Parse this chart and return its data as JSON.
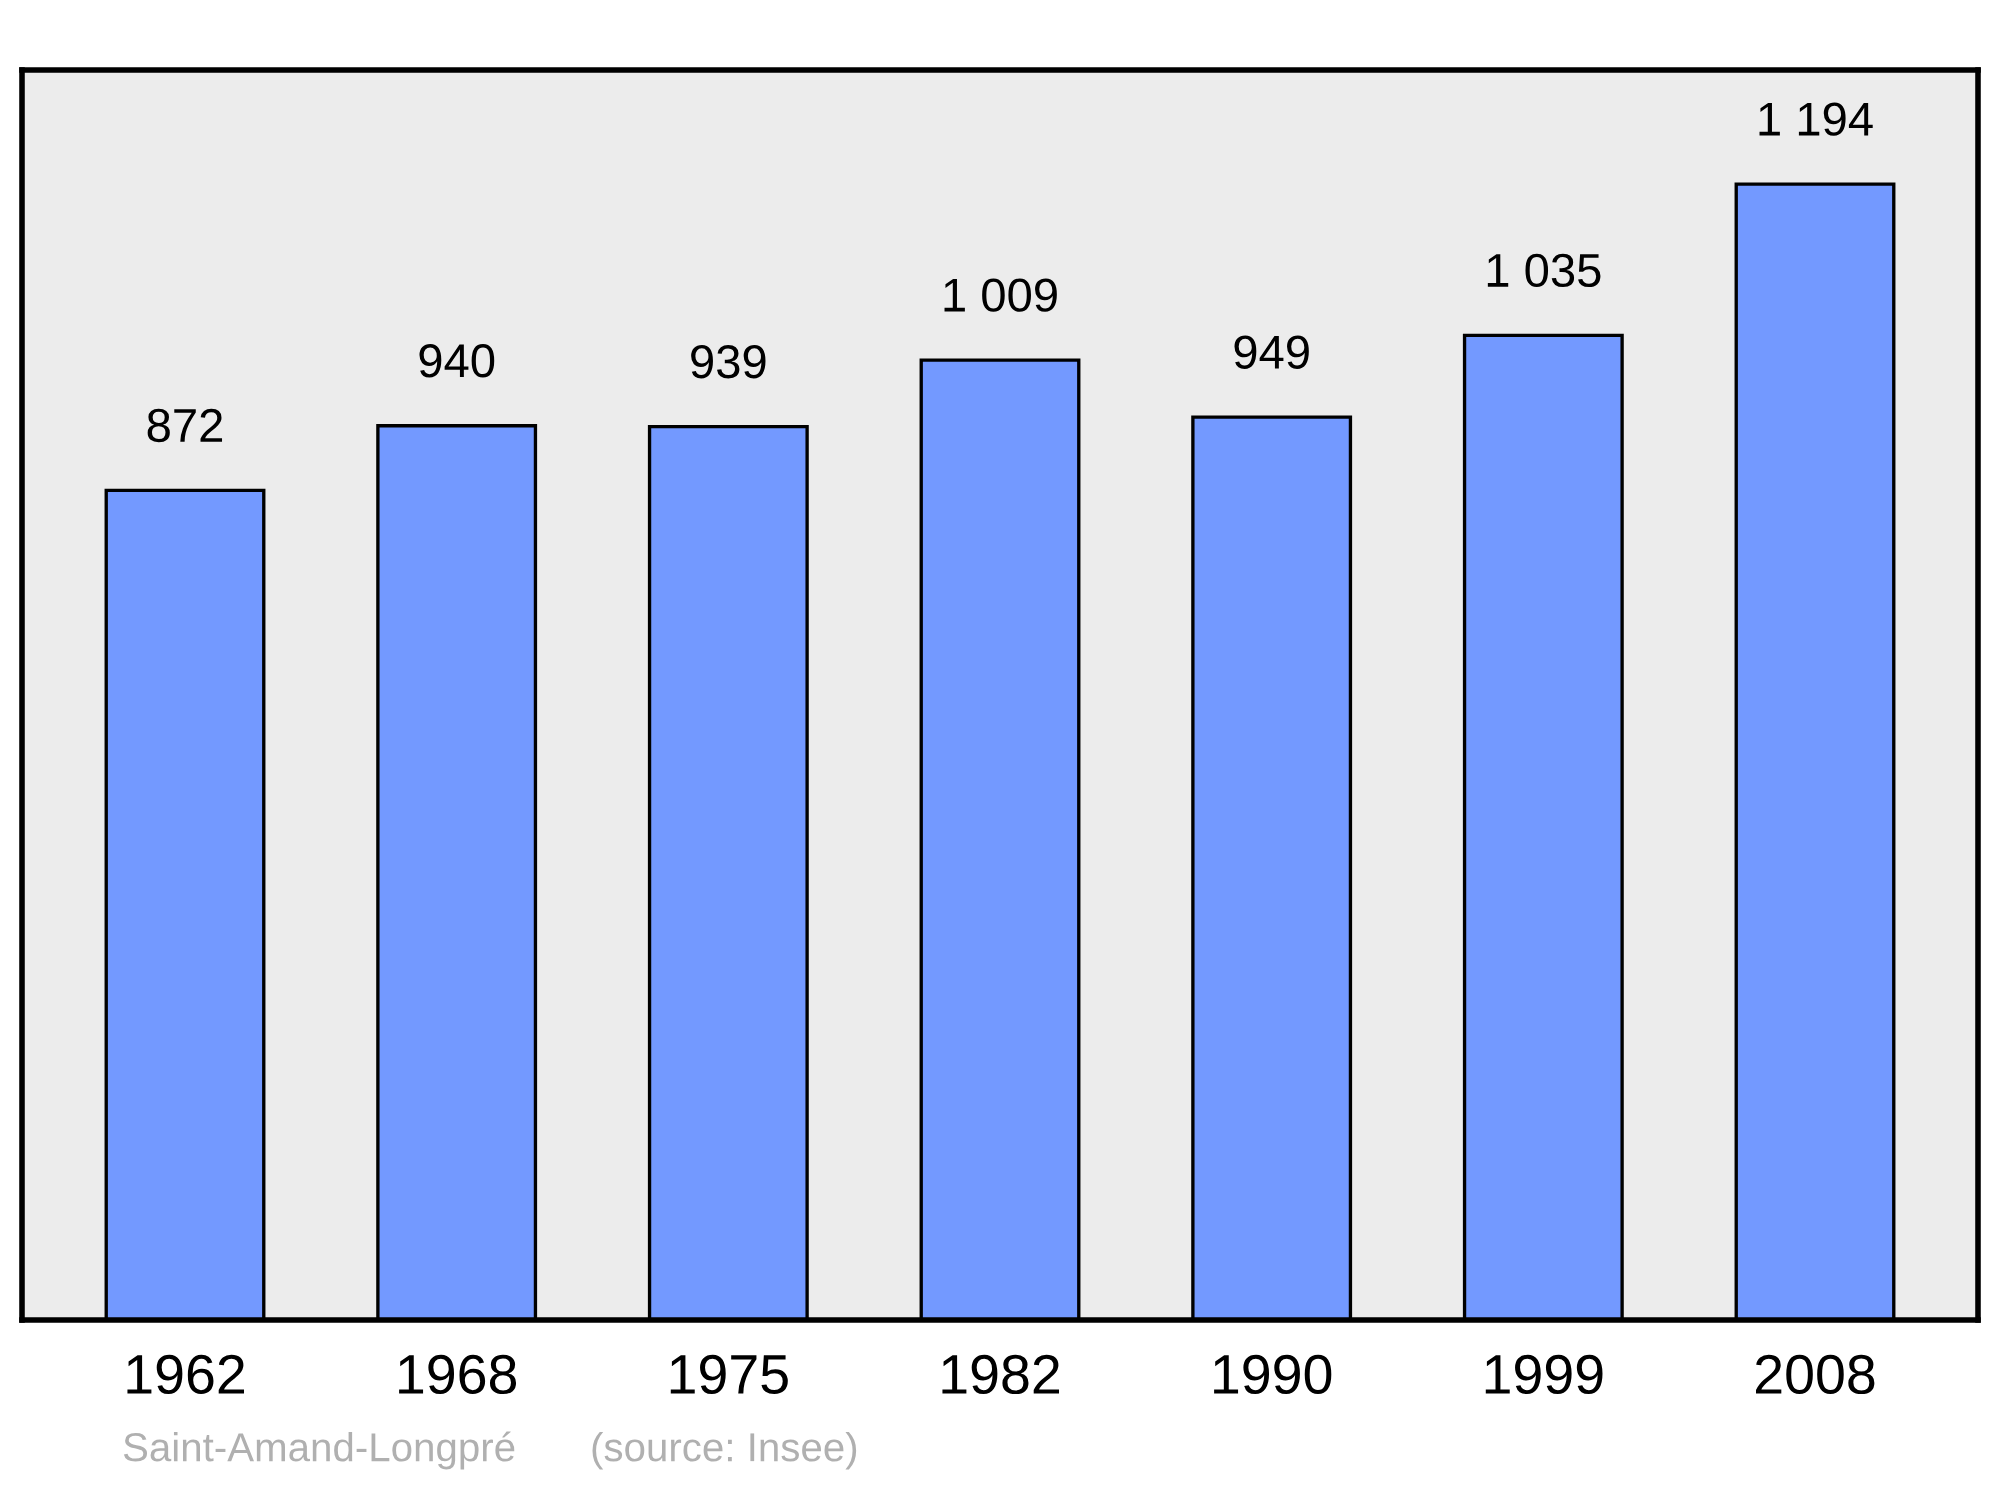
{
  "chart_data": {
    "type": "bar",
    "categories": [
      "1962",
      "1968",
      "1975",
      "1982",
      "1990",
      "1999",
      "2008"
    ],
    "values": [
      872,
      940,
      939,
      1009,
      949,
      1035,
      1194
    ],
    "value_labels": [
      "872",
      "940",
      "939",
      "1 009",
      "949",
      "1 035",
      "1 194"
    ],
    "color": "#7399ff",
    "ylim": [
      0,
      1314
    ],
    "tick_labels": "x",
    "grid": false,
    "legend": false,
    "annotations": [
      "Saint-Amand-Longpré",
      "(source: Insee)"
    ]
  }
}
